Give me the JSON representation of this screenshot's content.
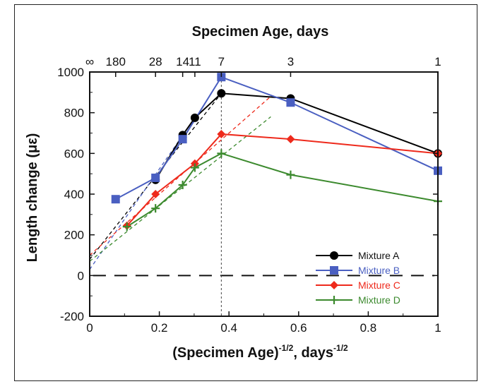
{
  "chart_data": {
    "type": "line",
    "xlabel_main": "(Specimen Age)",
    "xlabel_exp": "-1/2",
    "xlabel_unit": ", days",
    "xlabel_unit_exp": "-1/2",
    "ylabel": "Length change (με)",
    "top_axis_label": "Specimen Age, days",
    "xlim": [
      0,
      1
    ],
    "ylim": [
      -200,
      1000
    ],
    "x_ticks": [
      0,
      0.2,
      0.4,
      0.6,
      0.8,
      1
    ],
    "x_tick_labels": [
      "0",
      "0.2",
      "0.4",
      "0.6",
      "0.8",
      "1"
    ],
    "y_ticks": [
      -200,
      0,
      200,
      400,
      600,
      800,
      1000
    ],
    "y_tick_labels": [
      "-200",
      "0",
      "200",
      "400",
      "600",
      "800",
      "1000"
    ],
    "top_ticks": [
      {
        "label": "∞",
        "x": 0
      },
      {
        "label": "180",
        "x": 0.0745
      },
      {
        "label": "28",
        "x": 0.189
      },
      {
        "label": "14",
        "x": 0.267
      },
      {
        "label": "11",
        "x": 0.302
      },
      {
        "label": "7",
        "x": 0.378
      },
      {
        "label": "3",
        "x": 0.577
      },
      {
        "label": "1",
        "x": 1
      }
    ],
    "zero_line_y": 0,
    "vertical_marker_x": 0.378,
    "legend_position": "bottom-right",
    "series": [
      {
        "name": "Mixture A",
        "color": "#000000",
        "marker": "circle",
        "x": [
          0.189,
          0.267,
          0.302,
          0.378,
          0.577,
          1
        ],
        "y": [
          470,
          690,
          775,
          895,
          870,
          600
        ],
        "fit_line": [
          [
            0,
            80
          ],
          [
            0.378,
            895
          ]
        ]
      },
      {
        "name": "Mixture B",
        "color": "#4a5fc1",
        "marker": "square",
        "x": [
          0.0745,
          0.189,
          0.267,
          0.378,
          0.577,
          1
        ],
        "y": [
          375,
          480,
          670,
          975,
          850,
          515
        ],
        "fit_line": [
          [
            0,
            30
          ],
          [
            0.302,
            775
          ]
        ]
      },
      {
        "name": "Mixture C",
        "color": "#ee2a1c",
        "marker": "diamond",
        "x": [
          0.107,
          0.189,
          0.302,
          0.378,
          0.577,
          1
        ],
        "y": [
          245,
          400,
          550,
          695,
          670,
          600
        ],
        "fit_line": [
          [
            0,
            100
          ],
          [
            0.52,
            880
          ]
        ]
      },
      {
        "name": "Mixture D",
        "color": "#3c8a2e",
        "marker": "plus",
        "x": [
          0.107,
          0.189,
          0.267,
          0.302,
          0.378,
          0.577,
          1
        ],
        "y": [
          240,
          330,
          445,
          530,
          600,
          495,
          365
        ],
        "fit_line": [
          [
            0,
            70
          ],
          [
            0.52,
            780
          ]
        ]
      }
    ]
  }
}
